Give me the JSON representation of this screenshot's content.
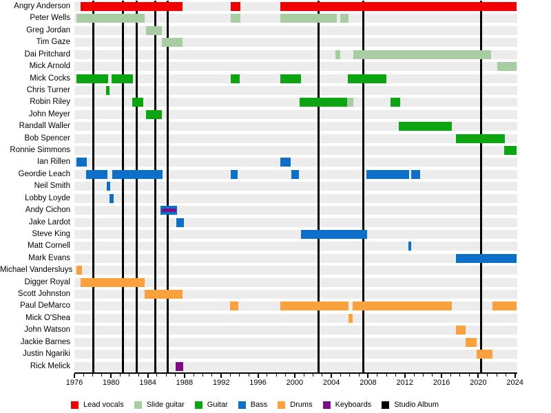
{
  "chart_data": {
    "type": "timeline_gantt",
    "x_axis": {
      "min": 1976,
      "max": 2024.25,
      "major_tick_years": [
        1976,
        1980,
        1984,
        1988,
        1992,
        1996,
        2000,
        2004,
        2008,
        2012,
        2016,
        2020,
        2024
      ],
      "minor_tick_step": 1,
      "minor_tick_start": 1976,
      "minor_tick_end": 2024
    },
    "role_colors": {
      "lead_vocals": "#f20000",
      "slide_guitar": "#a8cda2",
      "guitar": "#0ba512",
      "bass": "#0e6fc8",
      "drums": "#f9a13c",
      "keyboards": "#7c0d86",
      "studio_album": "#000000"
    },
    "legend": [
      {
        "label": "Lead vocals",
        "role": "lead_vocals"
      },
      {
        "label": "Slide guitar",
        "role": "slide_guitar"
      },
      {
        "label": "Guitar",
        "role": "guitar"
      },
      {
        "label": "Bass",
        "role": "bass"
      },
      {
        "label": "Drums",
        "role": "drums"
      },
      {
        "label": "Keyboards",
        "role": "keyboards"
      },
      {
        "label": "Studio Album",
        "role": "studio_album"
      }
    ],
    "album_release_years": [
      1978.1,
      1981.3,
      1982.8,
      1984.8,
      1986.2,
      2002.6,
      2007.5,
      2020.3
    ],
    "members": [
      {
        "name": "Angry Anderson",
        "segments": [
          {
            "role": "lead_vocals",
            "start": 1976.7,
            "end": 1987.8
          },
          {
            "role": "lead_vocals",
            "start": 1993.0,
            "end": 1994.1
          },
          {
            "role": "lead_vocals",
            "start": 1998.4,
            "end": 2024.2
          }
        ]
      },
      {
        "name": "Peter Wells",
        "segments": [
          {
            "role": "slide_guitar",
            "start": 1976.2,
            "end": 1983.65
          },
          {
            "role": "slide_guitar",
            "start": 1993.0,
            "end": 1994.05
          },
          {
            "role": "slide_guitar",
            "start": 1998.4,
            "end": 2004.6
          },
          {
            "role": "slide_guitar",
            "start": 2005.0,
            "end": 2005.9
          }
        ]
      },
      {
        "name": "Greg Jordan",
        "segments": [
          {
            "role": "slide_guitar",
            "start": 1983.8,
            "end": 1985.5
          }
        ]
      },
      {
        "name": "Tim Gaze",
        "segments": [
          {
            "role": "slide_guitar",
            "start": 1985.5,
            "end": 1987.8
          }
        ]
      },
      {
        "name": "Dai Pritchard",
        "segments": [
          {
            "role": "slide_guitar",
            "start": 2004.45,
            "end": 2004.95
          },
          {
            "role": "slide_guitar",
            "start": 2006.4,
            "end": 2021.4
          }
        ]
      },
      {
        "name": "Mick Arnold",
        "segments": [
          {
            "role": "slide_guitar",
            "start": 2022.1,
            "end": 2024.2
          }
        ]
      },
      {
        "name": "Mick Cocks",
        "segments": [
          {
            "role": "guitar",
            "start": 1976.2,
            "end": 1979.7
          },
          {
            "role": "guitar",
            "start": 1980.05,
            "end": 1982.4
          },
          {
            "role": "guitar",
            "start": 1993.0,
            "end": 1994.0
          },
          {
            "role": "guitar",
            "start": 1998.4,
            "end": 2000.7
          },
          {
            "role": "guitar",
            "start": 2005.8,
            "end": 2010.0
          }
        ]
      },
      {
        "name": "Chris Turner",
        "segments": [
          {
            "role": "guitar",
            "start": 1979.45,
            "end": 1979.85
          }
        ]
      },
      {
        "name": "Robin Riley",
        "segments": [
          {
            "role": "guitar",
            "start": 1982.3,
            "end": 1983.5
          },
          {
            "role": "guitar",
            "start": 2000.55,
            "end": 2005.7
          },
          {
            "role": "slide_guitar",
            "start": 2005.7,
            "end": 2006.4
          },
          {
            "role": "guitar",
            "start": 2010.45,
            "end": 2011.5
          }
        ]
      },
      {
        "name": "John Meyer",
        "segments": [
          {
            "role": "guitar",
            "start": 1983.8,
            "end": 1985.5
          }
        ]
      },
      {
        "name": "Randall Waller",
        "segments": [
          {
            "role": "guitar",
            "start": 2011.35,
            "end": 2017.15
          }
        ]
      },
      {
        "name": "Bob Spencer",
        "segments": [
          {
            "role": "guitar",
            "start": 2017.55,
            "end": 2022.9
          }
        ]
      },
      {
        "name": "Ronnie Simmons",
        "segments": [
          {
            "role": "guitar",
            "start": 2022.8,
            "end": 2024.2
          }
        ]
      },
      {
        "name": "Ian Rillen",
        "segments": [
          {
            "role": "bass",
            "start": 1976.2,
            "end": 1977.35
          },
          {
            "role": "bass",
            "start": 1998.4,
            "end": 1999.6
          }
        ]
      },
      {
        "name": "Geordie Leach",
        "segments": [
          {
            "role": "bass",
            "start": 1977.3,
            "end": 1979.6
          },
          {
            "role": "bass",
            "start": 1980.1,
            "end": 1985.6
          },
          {
            "role": "bass",
            "start": 1993.0,
            "end": 1993.8
          },
          {
            "role": "bass",
            "start": 1999.6,
            "end": 2000.5
          },
          {
            "role": "bass",
            "start": 2007.8,
            "end": 2012.5
          },
          {
            "role": "bass",
            "start": 2012.7,
            "end": 2013.7
          }
        ]
      },
      {
        "name": "Neil Smith",
        "segments": [
          {
            "role": "bass",
            "start": 1979.5,
            "end": 1979.9
          }
        ]
      },
      {
        "name": "Lobby Loyde",
        "segments": [
          {
            "role": "bass",
            "start": 1979.85,
            "end": 1980.3
          }
        ]
      },
      {
        "name": "Andy Cichon",
        "segments": [
          {
            "role": "bass",
            "start": 1985.4,
            "end": 1987.2
          },
          {
            "role": "keyboards",
            "start": 1985.55,
            "end": 1987.1,
            "overlay": true
          }
        ]
      },
      {
        "name": "Jake Lardot",
        "segments": [
          {
            "role": "bass",
            "start": 1987.1,
            "end": 1987.95
          }
        ]
      },
      {
        "name": "Steve King",
        "segments": [
          {
            "role": "bass",
            "start": 2000.7,
            "end": 2007.9
          }
        ]
      },
      {
        "name": "Matt Cornell",
        "segments": [
          {
            "role": "bass",
            "start": 2012.4,
            "end": 2012.7
          }
        ]
      },
      {
        "name": "Mark Evans",
        "segments": [
          {
            "role": "bass",
            "start": 2017.6,
            "end": 2024.2
          }
        ]
      },
      {
        "name": "Michael Vandersluys",
        "segments": [
          {
            "role": "drums",
            "start": 1976.2,
            "end": 1976.85
          }
        ]
      },
      {
        "name": "Digger Royal",
        "segments": [
          {
            "role": "drums",
            "start": 1976.7,
            "end": 1983.65
          }
        ]
      },
      {
        "name": "Scott Johnston",
        "segments": [
          {
            "role": "drums",
            "start": 1983.65,
            "end": 1987.8
          }
        ]
      },
      {
        "name": "Paul DeMarco",
        "segments": [
          {
            "role": "drums",
            "start": 1992.95,
            "end": 1993.85
          },
          {
            "role": "drums",
            "start": 1998.4,
            "end": 2005.9
          },
          {
            "role": "drums",
            "start": 2006.3,
            "end": 2017.15
          },
          {
            "role": "drums",
            "start": 2021.55,
            "end": 2024.2
          }
        ]
      },
      {
        "name": "Mick O'Shea",
        "segments": [
          {
            "role": "drums",
            "start": 2005.85,
            "end": 2006.3
          }
        ]
      },
      {
        "name": "John Watson",
        "segments": [
          {
            "role": "drums",
            "start": 2017.6,
            "end": 2018.65
          }
        ]
      },
      {
        "name": "Jackie Barnes",
        "segments": [
          {
            "role": "drums",
            "start": 2018.6,
            "end": 2019.85
          }
        ]
      },
      {
        "name": "Justin Ngariki",
        "segments": [
          {
            "role": "drums",
            "start": 2019.8,
            "end": 2021.55
          }
        ]
      },
      {
        "name": "Rick Melick",
        "segments": [
          {
            "role": "keyboards",
            "start": 1987.0,
            "end": 1987.85
          }
        ]
      }
    ]
  }
}
